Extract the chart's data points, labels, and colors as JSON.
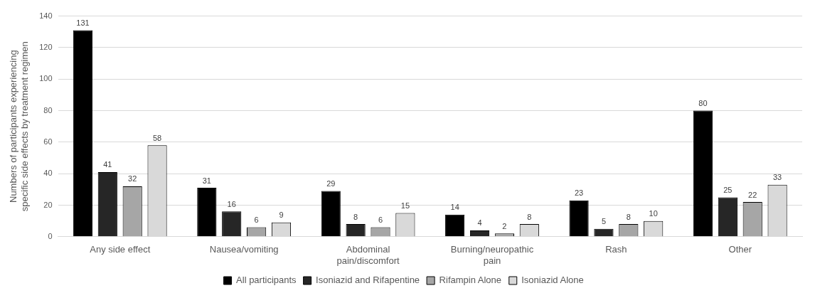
{
  "chart_data": {
    "type": "bar",
    "ylabel": "Numbers of participants experiencing specific side effects by treatment regimen",
    "categories": [
      "Any side effect",
      "Nausea/vomiting",
      "Abdominal pain/discomfort",
      "Burning/neuropathic pain",
      "Rash",
      "Other"
    ],
    "series": [
      {
        "name": "All participants",
        "color": "#000000",
        "values": [
          131,
          31,
          29,
          14,
          23,
          80
        ]
      },
      {
        "name": "Isoniazid and Rifapentine",
        "color": "#262626",
        "values": [
          41,
          16,
          8,
          4,
          5,
          25
        ]
      },
      {
        "name": "Rifampin Alone",
        "color": "#a6a6a6",
        "values": [
          32,
          6,
          6,
          2,
          8,
          22
        ]
      },
      {
        "name": "Isoniazid Alone",
        "color": "#d9d9d9",
        "values": [
          58,
          9,
          15,
          8,
          10,
          33
        ]
      }
    ],
    "ylim": [
      0,
      140
    ],
    "yticks": [
      0,
      20,
      40,
      60,
      80,
      100,
      120,
      140
    ],
    "grid": "y",
    "legend": "bottom",
    "data_labels": true
  }
}
